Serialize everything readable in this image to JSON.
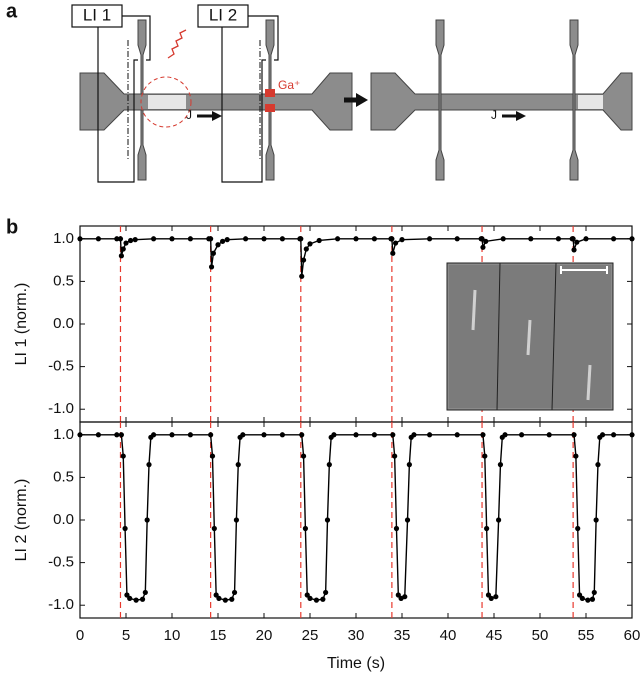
{
  "panel_a": {
    "label": "a",
    "lockin_1": "LI 1",
    "lockin_2": "LI 2",
    "ion": "Ga⁺",
    "current_left": "J",
    "current_right": "J"
  },
  "panel_b_label": "b",
  "chart_data": [
    {
      "type": "line",
      "ylabel": "LI 1 (norm.)",
      "color": "#000000",
      "xlim": [
        0,
        60
      ],
      "ylim": [
        -1.15,
        1.15
      ],
      "yticks": [
        {
          "value": -1,
          "label": "-1.0"
        },
        {
          "value": -0.5,
          "label": "-0.5"
        },
        {
          "value": 0,
          "label": "0.0"
        },
        {
          "value": 0.5,
          "label": "0.5"
        },
        {
          "value": 1,
          "label": "1.0"
        }
      ],
      "vlines": [
        4.4,
        14.2,
        24.0,
        33.9,
        43.7,
        53.6
      ],
      "vline_color": "#e8392e",
      "x": [
        0,
        2,
        4,
        4.4,
        4.5,
        4.7,
        5,
        5.5,
        6,
        8,
        10,
        12,
        14,
        14.2,
        14.3,
        14.5,
        15,
        15.5,
        16,
        18,
        20,
        22,
        23.9,
        24.0,
        24.1,
        24.3,
        24.6,
        25,
        26,
        28,
        30,
        32,
        33.8,
        33.9,
        34.0,
        34.3,
        35,
        38,
        41,
        43.6,
        43.7,
        43.8,
        44.1,
        46,
        49,
        52,
        53.5,
        53.6,
        53.7,
        54.0,
        55,
        58,
        60
      ],
      "values": [
        1,
        1,
        1,
        1,
        0.8,
        0.88,
        0.95,
        0.98,
        0.99,
        1,
        1,
        1,
        1,
        1,
        0.67,
        0.83,
        0.93,
        0.97,
        0.99,
        1,
        1,
        1,
        1,
        1,
        0.56,
        0.75,
        0.88,
        0.94,
        0.98,
        1,
        1,
        1,
        1,
        1,
        0.83,
        0.95,
        0.99,
        1,
        1,
        1,
        1,
        0.9,
        0.97,
        1,
        1,
        1,
        1,
        1,
        0.87,
        0.96,
        1,
        1,
        1
      ]
    },
    {
      "type": "line",
      "ylabel": "LI 2 (norm.)",
      "xlabel": "Time (s)",
      "color": "#000000",
      "xlim": [
        0,
        60
      ],
      "ylim": [
        -1.15,
        1.15
      ],
      "xticks": [
        0,
        5,
        10,
        15,
        20,
        25,
        30,
        35,
        40,
        45,
        50,
        55,
        60
      ],
      "yticks": [
        {
          "value": -1,
          "label": "-1.0"
        },
        {
          "value": -0.5,
          "label": "-0.5"
        },
        {
          "value": 0,
          "label": "0.0"
        },
        {
          "value": 0.5,
          "label": "0.5"
        },
        {
          "value": 1,
          "label": "1.0"
        }
      ],
      "vlines": [
        4.4,
        14.2,
        24.0,
        33.9,
        43.7,
        53.6
      ],
      "vline_color": "#e8392e",
      "x": [
        0,
        2,
        4,
        4.5,
        4.7,
        4.9,
        5.1,
        5.4,
        6.1,
        6.8,
        7.1,
        7.3,
        7.5,
        7.7,
        8.0,
        10,
        12,
        14.2,
        14.4,
        14.6,
        14.8,
        15.1,
        15.8,
        16.5,
        16.8,
        17.0,
        17.2,
        17.4,
        17.7,
        20,
        22,
        24.1,
        24.3,
        24.5,
        24.7,
        25.0,
        25.7,
        26.4,
        26.7,
        26.9,
        27.1,
        27.3,
        27.6,
        30,
        32,
        34.0,
        34.2,
        34.4,
        34.6,
        34.9,
        35.3,
        35.6,
        35.8,
        36.0,
        36.3,
        38,
        41,
        43.8,
        44.0,
        44.2,
        44.4,
        44.7,
        45.2,
        45.5,
        45.7,
        45.9,
        46.2,
        48,
        51,
        53.7,
        53.9,
        54.1,
        54.3,
        54.6,
        55.2,
        55.7,
        55.9,
        56.1,
        56.3,
        56.5,
        56.8,
        58,
        60
      ],
      "values": [
        1,
        1,
        1,
        1,
        0.75,
        -0.1,
        -0.88,
        -0.92,
        -0.94,
        -0.93,
        -0.85,
        0,
        0.65,
        0.97,
        1,
        1,
        1,
        1,
        0.75,
        -0.1,
        -0.88,
        -0.92,
        -0.94,
        -0.93,
        -0.85,
        0,
        0.65,
        0.97,
        1,
        1,
        1,
        1,
        0.75,
        -0.1,
        -0.88,
        -0.92,
        -0.94,
        -0.93,
        -0.85,
        0,
        0.65,
        0.97,
        1,
        1,
        1,
        1,
        0.75,
        -0.1,
        -0.88,
        -0.92,
        -0.9,
        0,
        0.65,
        0.97,
        1,
        1,
        1,
        1,
        0.75,
        -0.1,
        -0.88,
        -0.92,
        -0.9,
        0,
        0.65,
        0.97,
        1,
        1,
        1,
        1,
        0.75,
        -0.1,
        -0.88,
        -0.92,
        -0.94,
        -0.93,
        -0.85,
        0,
        0.65,
        0.97,
        1,
        1,
        1
      ]
    }
  ]
}
